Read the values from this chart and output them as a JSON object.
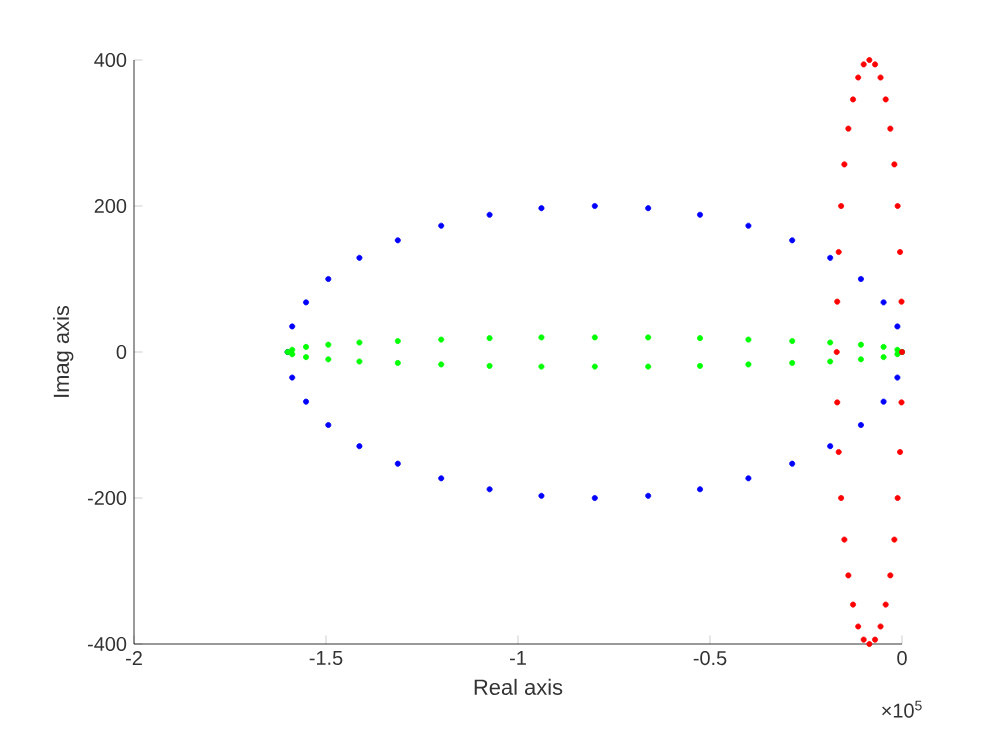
{
  "chart_data": {
    "type": "scatter",
    "xlabel": "Real axis",
    "ylabel": "Imag axis",
    "marker": "circle",
    "xlim": [
      -2,
      0
    ],
    "ylim": [
      -400,
      400
    ],
    "xticks": [
      -2,
      -1.5,
      -1,
      -0.5,
      0
    ],
    "yticks": [
      -400,
      -200,
      0,
      200,
      400
    ],
    "annotations": [
      "×10$^{5}$"
    ],
    "series": [
      {
        "color": "#0000ff",
        "x": [
          0,
          -0.012,
          -0.048,
          -0.107,
          -0.187,
          -0.286,
          -0.4,
          -0.526,
          -0.661,
          -0.8,
          -0.939,
          -1.074,
          -1.2,
          -1.313,
          -1.413,
          -1.494,
          -1.552,
          -1.588,
          -1.6,
          -1.588,
          -1.552,
          -1.494,
          -1.413,
          -1.313,
          -1.2,
          -1.074,
          -0.939,
          -0.8,
          -0.661,
          -0.526,
          -0.4,
          -0.286,
          -0.187,
          -0.107,
          -0.048,
          -0.012
        ],
        "values": [
          0,
          35,
          68,
          100,
          129,
          153,
          173,
          188,
          197,
          200,
          197,
          188,
          173,
          153,
          129,
          100,
          68,
          35,
          0,
          -35,
          -68,
          -100,
          -129,
          -153,
          -173,
          -188,
          -197,
          -200,
          -197,
          -188,
          -173,
          -153,
          -129,
          -100,
          -68,
          -35
        ]
      },
      {
        "color": "#00ff00",
        "x": [
          0,
          -0.012,
          -0.048,
          -0.107,
          -0.187,
          -0.286,
          -0.4,
          -0.526,
          -0.661,
          -0.8,
          -0.939,
          -1.074,
          -1.2,
          -1.313,
          -1.413,
          -1.494,
          -1.552,
          -1.588,
          -1.6,
          -1.588,
          -1.552,
          -1.494,
          -1.413,
          -1.313,
          -1.2,
          -1.074,
          -0.939,
          -0.8,
          -0.661,
          -0.526,
          -0.4,
          -0.286,
          -0.187,
          -0.107,
          -0.048,
          -0.012
        ],
        "values": [
          0,
          3,
          7,
          10,
          13,
          15,
          17,
          19,
          20,
          20,
          20,
          19,
          17,
          15,
          13,
          10,
          7,
          3,
          0,
          -3,
          -7,
          -10,
          -13,
          -15,
          -17,
          -19,
          -20,
          -20,
          -20,
          -19,
          -17,
          -15,
          -13,
          -10,
          -7,
          -3
        ]
      },
      {
        "color": "#ff0000",
        "x": [
          0,
          -0.0013,
          -0.0051,
          -0.0114,
          -0.0199,
          -0.0304,
          -0.0425,
          -0.0559,
          -0.0702,
          -0.085,
          -0.0998,
          -0.1141,
          -0.1275,
          -0.1397,
          -0.1501,
          -0.1586,
          -0.1649,
          -0.1687,
          -0.17,
          -0.1687,
          -0.1649,
          -0.1586,
          -0.1501,
          -0.1397,
          -0.1275,
          -0.1141,
          -0.0998,
          -0.085,
          -0.0702,
          -0.0559,
          -0.0425,
          -0.0304,
          -0.0199,
          -0.0114,
          -0.0051,
          -0.0013
        ],
        "values": [
          0,
          69,
          137,
          200,
          257,
          306,
          346,
          376,
          394,
          400,
          394,
          376,
          346,
          306,
          257,
          200,
          137,
          69,
          0,
          -69,
          -137,
          -200,
          -257,
          -306,
          -346,
          -376,
          -394,
          -400,
          -394,
          -376,
          -346,
          -306,
          -257,
          -200,
          -137,
          -69
        ]
      }
    ]
  }
}
